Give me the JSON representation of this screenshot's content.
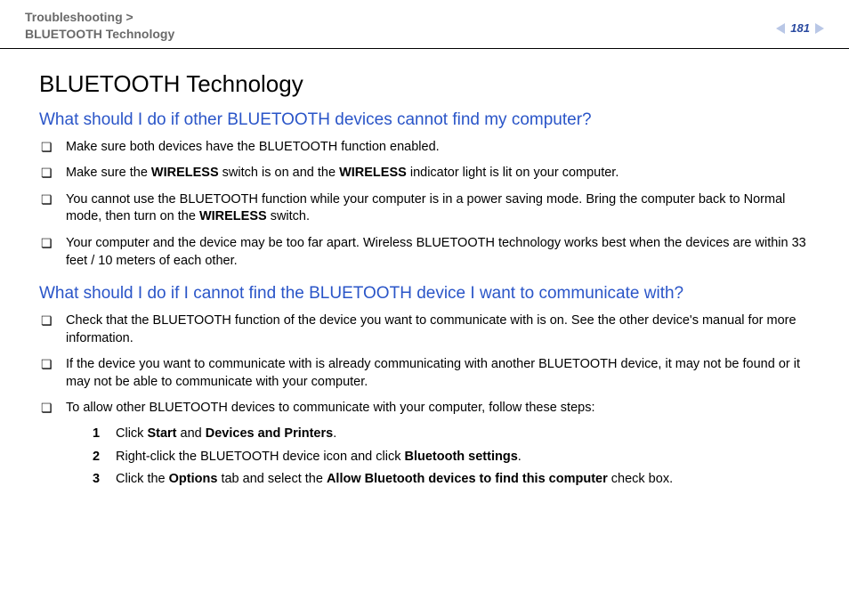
{
  "header": {
    "breadcrumb_line1": "Troubleshooting >",
    "breadcrumb_line2": "BLUETOOTH Technology",
    "page_number": "181"
  },
  "title": "BLUETOOTH Technology",
  "section1": {
    "question": "What should I do if other BLUETOOTH devices cannot find my computer?",
    "items": {
      "i0": "Make sure both devices have the BLUETOOTH function enabled.",
      "i1_a": "Make sure the ",
      "i1_b": "WIRELESS",
      "i1_c": " switch is on and the ",
      "i1_d": "WIRELESS",
      "i1_e": " indicator light is lit on your computer.",
      "i2_a": "You cannot use the BLUETOOTH function while your computer is in a power saving mode. Bring the computer back to Normal mode, then turn on the ",
      "i2_b": "WIRELESS",
      "i2_c": " switch.",
      "i3": "Your computer and the device may be too far apart. Wireless BLUETOOTH technology works best when the devices are within 33 feet / 10 meters of each other."
    }
  },
  "section2": {
    "question": "What should I do if I cannot find the BLUETOOTH device I want to communicate with?",
    "items": {
      "i0": "Check that the BLUETOOTH function of the device you want to communicate with is on. See the other device's manual for more information.",
      "i1": "If the device you want to communicate with is already communicating with another BLUETOOTH device, it may not be found or it may not be able to communicate with your computer.",
      "i2": "To allow other BLUETOOTH devices to communicate with your computer, follow these steps:"
    },
    "steps": {
      "s1_a": "Click ",
      "s1_b": "Start",
      "s1_c": " and ",
      "s1_d": "Devices and Printers",
      "s1_e": ".",
      "s2_a": "Right-click the BLUETOOTH device icon and click ",
      "s2_b": "Bluetooth settings",
      "s2_c": ".",
      "s3_a": "Click the ",
      "s3_b": "Options",
      "s3_c": " tab and select the ",
      "s3_d": "Allow Bluetooth devices to find this computer",
      "s3_e": " check box."
    }
  },
  "colors": {
    "link_blue": "#2a55c8",
    "breadcrumb_gray": "#6a6a6a",
    "pager_blue": "#2a4aa0",
    "arrow_fill": "#b9c7e6"
  }
}
